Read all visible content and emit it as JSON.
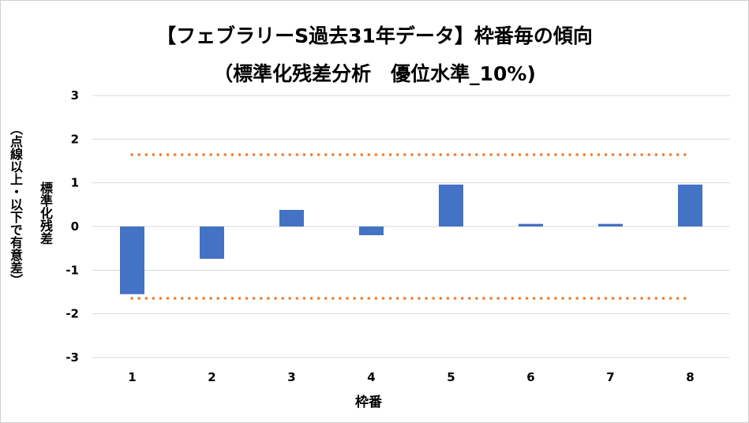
{
  "chart_data": {
    "type": "bar",
    "title": "【フェブラリーS過去31年データ】枠番毎の傾向",
    "subtitle": "（標準化残差分析　優位水準_10%)",
    "xlabel": "枠番",
    "ylabel": "標準化残差",
    "ylabel_note": "（点線以上・以下で有意差）",
    "categories": [
      "1",
      "2",
      "3",
      "4",
      "5",
      "6",
      "7",
      "8"
    ],
    "values": [
      -1.55,
      -0.74,
      0.38,
      -0.2,
      0.96,
      0.06,
      0.06,
      0.96
    ],
    "ylim": [
      -3,
      3
    ],
    "yticks": [
      "3",
      "2",
      "1",
      "0",
      "-1",
      "-2",
      "-3"
    ],
    "threshold_lines": [
      1.645,
      -1.645
    ],
    "grid": true,
    "legend": "none",
    "colors": {
      "bar": "#4472C4",
      "threshold": "#ED7D31",
      "grid": "#D9D9D9"
    }
  }
}
